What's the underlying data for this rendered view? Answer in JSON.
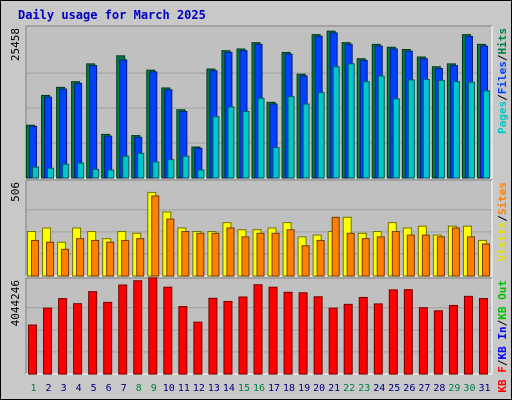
{
  "title": "Daily usage for March 2025",
  "chart_data": [
    {
      "type": "bar",
      "name": "pages-files-hits",
      "ymax": 25458,
      "max_label": "25458",
      "legend": [
        {
          "text": "Pages",
          "color": "#00c8c8"
        },
        {
          "text": "/",
          "color": "#000000"
        },
        {
          "text": "Files",
          "color": "#0040ff"
        },
        {
          "text": "/",
          "color": "#000000"
        },
        {
          "text": "Hits",
          "color": "#008040"
        }
      ],
      "series": [
        {
          "name": "Hits",
          "color": "#008040",
          "values": [
            9200,
            14400,
            15800,
            16800,
            19900,
            7600,
            21300,
            7400,
            18800,
            15700,
            11900,
            5400,
            19000,
            22200,
            22500,
            23600,
            13200,
            21900,
            18100,
            25000,
            25600,
            23600,
            20800,
            23300,
            22800,
            22400,
            21100,
            19400,
            19900,
            25000,
            23300
          ]
        },
        {
          "name": "Files",
          "color": "#0040ff",
          "values": [
            9000,
            14100,
            15500,
            16500,
            19600,
            7300,
            20600,
            7100,
            18500,
            15400,
            11600,
            5200,
            18700,
            21900,
            22200,
            23300,
            12900,
            21600,
            17800,
            24700,
            25300,
            23300,
            20500,
            23000,
            22500,
            22100,
            20800,
            19100,
            19600,
            24700,
            23000
          ]
        },
        {
          "name": "Pages",
          "color": "#00c8c8",
          "values": [
            1900,
            1700,
            2400,
            2600,
            1500,
            1400,
            3800,
            4300,
            2800,
            3200,
            3800,
            1400,
            10700,
            12400,
            11600,
            13900,
            5300,
            14200,
            12900,
            14900,
            19400,
            19900,
            16800,
            17800,
            13800,
            17100,
            17200,
            17000,
            16800,
            16700,
            15200
          ]
        }
      ]
    },
    {
      "type": "bar",
      "name": "visits-sites",
      "ymax": 506,
      "max_label": "506",
      "legend": [
        {
          "text": "Visits",
          "color": "#e0e000"
        },
        {
          "text": "/",
          "color": "#000000"
        },
        {
          "text": "Sites",
          "color": "#ff8000"
        }
      ],
      "series": [
        {
          "name": "Visits",
          "color": "#ffff00",
          "values": [
            250,
            270,
            190,
            270,
            250,
            210,
            250,
            240,
            470,
            360,
            270,
            250,
            250,
            300,
            260,
            260,
            270,
            300,
            220,
            230,
            250,
            330,
            240,
            250,
            300,
            270,
            280,
            230,
            280,
            280,
            200
          ]
        },
        {
          "name": "Sites",
          "color": "#ff8000",
          "values": [
            200,
            190,
            150,
            210,
            200,
            190,
            200,
            210,
            450,
            320,
            250,
            240,
            240,
            270,
            220,
            240,
            240,
            260,
            170,
            200,
            330,
            240,
            210,
            220,
            250,
            230,
            230,
            220,
            270,
            220,
            180
          ]
        }
      ]
    },
    {
      "type": "bar",
      "name": "kbytes",
      "ymax": 4044246,
      "max_label": "4044246",
      "legend": [
        {
          "text": "KB F",
          "color": "#ff0000"
        },
        {
          "text": "/",
          "color": "#000000"
        },
        {
          "text": "KB In",
          "color": "#0000ff"
        },
        {
          "text": "/",
          "color": "#000000"
        },
        {
          "text": "KB Out",
          "color": "#00c000"
        }
      ],
      "series": [
        {
          "name": "KB F",
          "color": "#ff0000",
          "values": [
            2200000,
            2960000,
            3390000,
            3160000,
            3700000,
            3220000,
            4000000,
            4190000,
            4320000,
            3900000,
            3030000,
            2330000,
            3400000,
            3260000,
            3460000,
            4010000,
            3900000,
            3670000,
            3650000,
            3470000,
            2960000,
            3130000,
            3440000,
            3150000,
            3780000,
            3790000,
            2980000,
            2840000,
            3080000,
            3490000,
            3390000
          ]
        }
      ]
    }
  ],
  "x_labels": [
    {
      "text": "1",
      "color": "#008040"
    },
    {
      "text": "2",
      "color": "#000080"
    },
    {
      "text": "3",
      "color": "#000080"
    },
    {
      "text": "4",
      "color": "#000080"
    },
    {
      "text": "5",
      "color": "#000080"
    },
    {
      "text": "6",
      "color": "#000080"
    },
    {
      "text": "7",
      "color": "#000080"
    },
    {
      "text": "8",
      "color": "#008040"
    },
    {
      "text": "9",
      "color": "#008040"
    },
    {
      "text": "10",
      "color": "#000080"
    },
    {
      "text": "11",
      "color": "#000080"
    },
    {
      "text": "12",
      "color": "#000080"
    },
    {
      "text": "13",
      "color": "#000080"
    },
    {
      "text": "14",
      "color": "#000080"
    },
    {
      "text": "15",
      "color": "#008040"
    },
    {
      "text": "16",
      "color": "#008040"
    },
    {
      "text": "17",
      "color": "#000080"
    },
    {
      "text": "18",
      "color": "#000080"
    },
    {
      "text": "19",
      "color": "#000080"
    },
    {
      "text": "20",
      "color": "#000080"
    },
    {
      "text": "21",
      "color": "#000080"
    },
    {
      "text": "22",
      "color": "#008040"
    },
    {
      "text": "23",
      "color": "#008040"
    },
    {
      "text": "24",
      "color": "#000080"
    },
    {
      "text": "25",
      "color": "#000080"
    },
    {
      "text": "26",
      "color": "#000080"
    },
    {
      "text": "27",
      "color": "#000080"
    },
    {
      "text": "28",
      "color": "#000080"
    },
    {
      "text": "29",
      "color": "#008040"
    },
    {
      "text": "30",
      "color": "#008040"
    },
    {
      "text": "31",
      "color": "#000080"
    }
  ]
}
